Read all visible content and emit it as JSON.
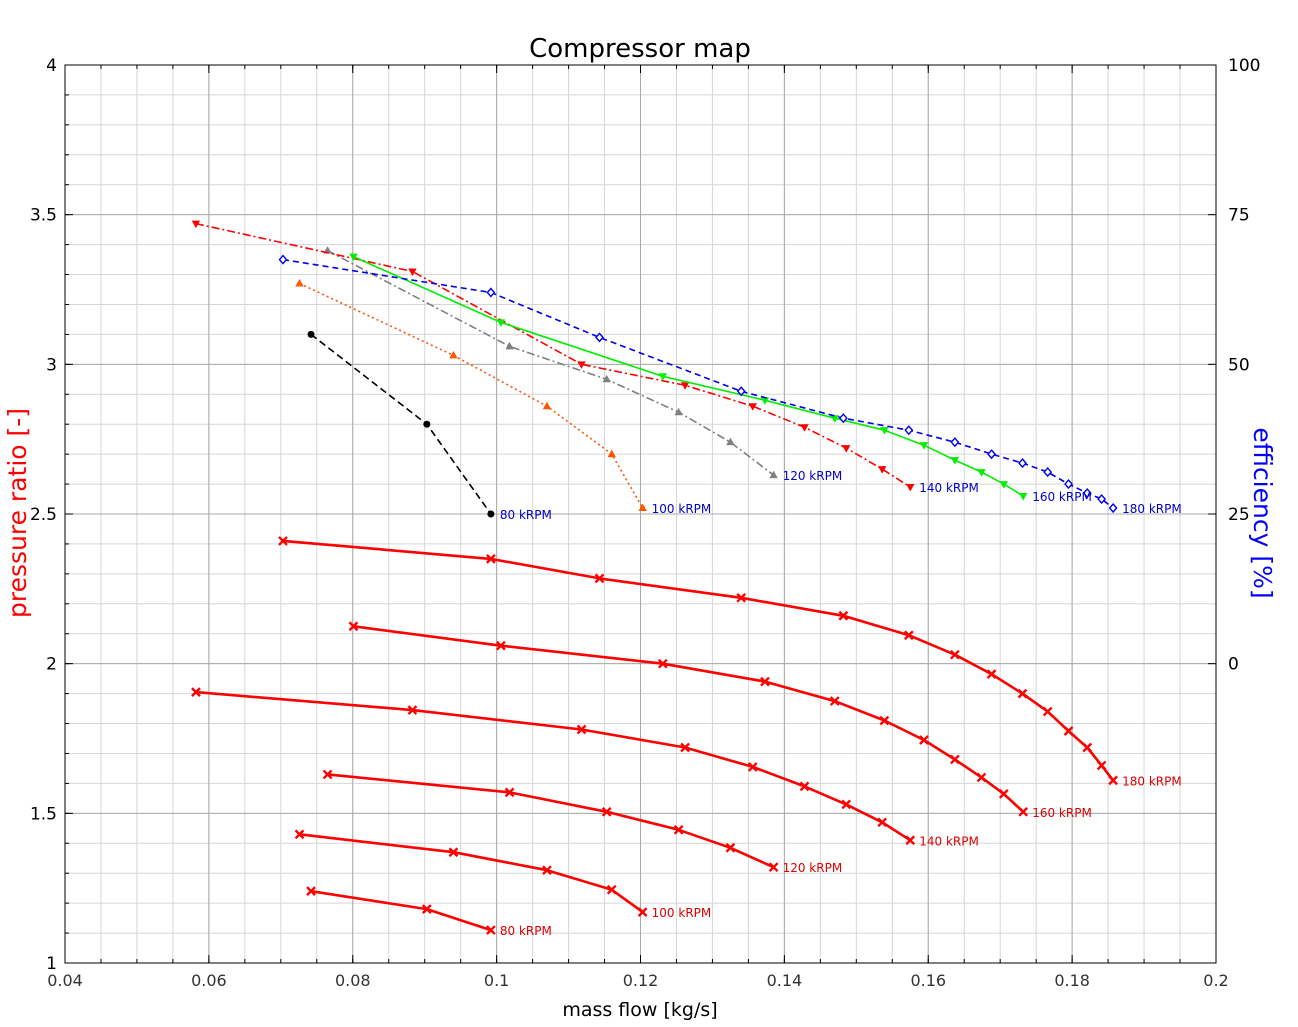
{
  "chart_data": {
    "type": "line",
    "title": "Compressor map",
    "xlabel": "mass flow [kg/s]",
    "ylabel": "pressure ratio [-]",
    "y2label": "efficiency [%]",
    "xlim": [
      0.04,
      0.2
    ],
    "ylim": [
      1,
      4
    ],
    "y2lim": [
      -50,
      100
    ],
    "xticks": [
      "0.04",
      "0.06",
      "0.08",
      "0.1",
      "0.12",
      "0.14",
      "0.16",
      "0.18",
      "0.2"
    ],
    "xtick_values": [
      0.04,
      0.06,
      0.08,
      0.1,
      0.12,
      0.14,
      0.16,
      0.18,
      0.2
    ],
    "yticks": [
      "1",
      "1.5",
      "2",
      "2.5",
      "3",
      "3.5",
      "4"
    ],
    "ytick_values": [
      1,
      1.5,
      2,
      2.5,
      3,
      3.5,
      4
    ],
    "y2ticks": [
      "0",
      "25",
      "50",
      "75",
      "100"
    ],
    "y2tick_values": [
      0,
      25,
      50,
      75,
      100
    ],
    "grid": true,
    "colors": {
      "pressure": "#ff0000",
      "pressure_label": "#dd0000",
      "efficiency_label": "#0000cc",
      "axis_left": "#ff0000",
      "axis_right": "#0000ff"
    },
    "pressure_series": [
      {
        "label": "80 kRPM",
        "x": [
          0.0742,
          0.0903,
          0.0992
        ],
        "y": [
          1.24,
          1.18,
          1.11
        ]
      },
      {
        "label": "100 kRPM",
        "x": [
          0.0726,
          0.094,
          0.107,
          0.116,
          0.1203
        ],
        "y": [
          1.43,
          1.37,
          1.31,
          1.245,
          1.17
        ]
      },
      {
        "label": "120 kRPM",
        "x": [
          0.0765,
          0.1018,
          0.1153,
          0.1253,
          0.1325,
          0.1385
        ],
        "y": [
          1.63,
          1.57,
          1.505,
          1.445,
          1.385,
          1.32
        ]
      },
      {
        "label": "140 kRPM",
        "x": [
          0.0582,
          0.0883,
          0.1118,
          0.1262,
          0.1356,
          0.1428,
          0.1486,
          0.1536,
          0.1575
        ],
        "y": [
          1.905,
          1.845,
          1.78,
          1.72,
          1.655,
          1.59,
          1.53,
          1.47,
          1.41
        ]
      },
      {
        "label": "160 kRPM",
        "x": [
          0.0801,
          0.1006,
          0.1231,
          0.1373,
          0.147,
          0.1539,
          0.1594,
          0.1637,
          0.1674,
          0.1705,
          0.1732
        ],
        "y": [
          2.125,
          2.06,
          2.0,
          1.94,
          1.875,
          1.81,
          1.745,
          1.68,
          1.62,
          1.565,
          1.505
        ]
      },
      {
        "label": "180 kRPM",
        "x": [
          0.0703,
          0.0992,
          0.1143,
          0.134,
          0.1482,
          0.1573,
          0.1637,
          0.1688,
          0.1731,
          0.1766,
          0.1795,
          0.1821,
          0.1841,
          0.1857
        ],
        "y": [
          2.41,
          2.35,
          2.285,
          2.22,
          2.16,
          2.095,
          2.03,
          1.965,
          1.9,
          1.84,
          1.775,
          1.72,
          1.66,
          1.61
        ]
      }
    ],
    "efficiency_series": [
      {
        "label": "80 kRPM",
        "color": "#000000",
        "dash": "7,4",
        "marker": "circle",
        "x": [
          0.0742,
          0.0903,
          0.0992
        ],
        "y": [
          55,
          40,
          25
        ]
      },
      {
        "label": "100 kRPM",
        "color": "#ff5500",
        "dash": "2,3",
        "marker": "triangle-up",
        "x": [
          0.0726,
          0.094,
          0.107,
          0.116,
          0.1203
        ],
        "y": [
          63.5,
          51.5,
          43,
          35,
          26
        ]
      },
      {
        "label": "120 kRPM",
        "color": "#808080",
        "dash": "8,3,2,3",
        "marker": "triangle-up",
        "x": [
          0.0765,
          0.1018,
          0.1153,
          0.1253,
          0.1325,
          0.1385
        ],
        "y": [
          69,
          53,
          47.5,
          42,
          37,
          31.5
        ]
      },
      {
        "label": "140 kRPM",
        "color": "#ff0000",
        "dash": "8,3,2,3",
        "marker": "triangle-down",
        "x": [
          0.0582,
          0.0883,
          0.1118,
          0.1262,
          0.1356,
          0.1428,
          0.1486,
          0.1536,
          0.1575
        ],
        "y": [
          73.5,
          65.5,
          50,
          46.5,
          43,
          39.5,
          36,
          32.5,
          29.5
        ]
      },
      {
        "label": "160 kRPM",
        "color": "#00ee00",
        "dash": "",
        "marker": "triangle-down",
        "x": [
          0.0801,
          0.1006,
          0.1231,
          0.1373,
          0.147,
          0.1539,
          0.1594,
          0.1637,
          0.1674,
          0.1705,
          0.1732
        ],
        "y": [
          68,
          57,
          48,
          44,
          41,
          39,
          36.5,
          34,
          32,
          30,
          28
        ]
      },
      {
        "label": "180 kRPM",
        "color": "#0000ee",
        "dash": "6,4",
        "marker": "diamond",
        "x": [
          0.0703,
          0.0992,
          0.1143,
          0.134,
          0.1482,
          0.1573,
          0.1637,
          0.1688,
          0.1731,
          0.1766,
          0.1795,
          0.1821,
          0.1841,
          0.1857
        ],
        "y": [
          67.5,
          62,
          54.5,
          45.5,
          41,
          39,
          37,
          35,
          33.5,
          32,
          30,
          28.5,
          27.5,
          26
        ]
      }
    ]
  }
}
